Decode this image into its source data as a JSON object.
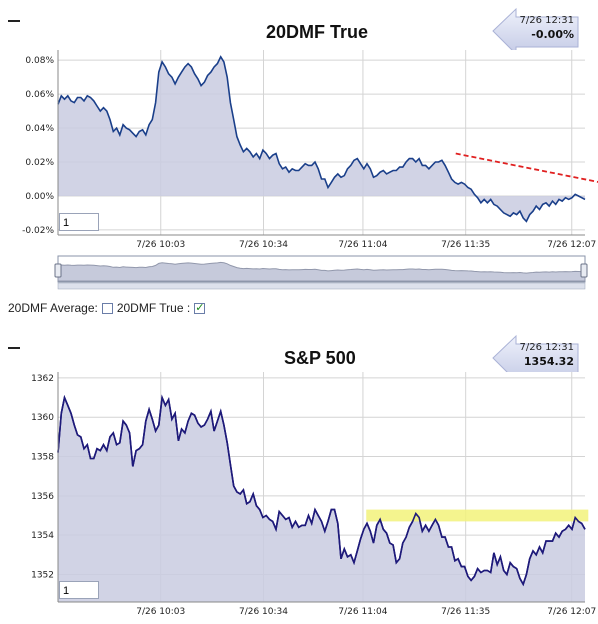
{
  "chart_data": [
    {
      "type": "area",
      "title": "20DMF True",
      "callout": {
        "time": "7/26 12:31",
        "value": "-0.00%"
      },
      "ylim": [
        -0.023,
        0.086
      ],
      "yticks": [
        "0.08%",
        "0.06%",
        "0.04%",
        "0.02%",
        "0.00%",
        "-0.02%"
      ],
      "ytick_values": [
        0.08,
        0.06,
        0.04,
        0.02,
        0.0,
        -0.02
      ],
      "x_range": [
        0,
        159
      ],
      "xticks": [
        "7/26 10:03",
        "7/26 10:34",
        "7/26 11:04",
        "7/26 11:35",
        "7/26 12:07"
      ],
      "xtick_positions": [
        31,
        62,
        92,
        123,
        155
      ],
      "zoom_value": "1",
      "trendline": {
        "from": [
          120,
          0.025
        ],
        "to": [
          179,
          0.002
        ],
        "color": "#e02020"
      },
      "series": [
        {
          "values": [
            0.054,
            0.059,
            0.057,
            0.059,
            0.056,
            0.055,
            0.058,
            0.058,
            0.056,
            0.059,
            0.058,
            0.056,
            0.053,
            0.05,
            0.052,
            0.05,
            0.045,
            0.038,
            0.04,
            0.036,
            0.042,
            0.04,
            0.039,
            0.037,
            0.035,
            0.038,
            0.039,
            0.036,
            0.042,
            0.045,
            0.055,
            0.073,
            0.079,
            0.076,
            0.072,
            0.07,
            0.066,
            0.07,
            0.073,
            0.076,
            0.078,
            0.076,
            0.072,
            0.069,
            0.065,
            0.067,
            0.071,
            0.073,
            0.076,
            0.078,
            0.082,
            0.079,
            0.07,
            0.055,
            0.045,
            0.035,
            0.03,
            0.026,
            0.028,
            0.026,
            0.023,
            0.025,
            0.022,
            0.027,
            0.025,
            0.022,
            0.024,
            0.025,
            0.019,
            0.016,
            0.017,
            0.014,
            0.016,
            0.015,
            0.015,
            0.017,
            0.019,
            0.018,
            0.018,
            0.02,
            0.016,
            0.01,
            0.01,
            0.005,
            0.008,
            0.011,
            0.013,
            0.011,
            0.012,
            0.016,
            0.018,
            0.021,
            0.022,
            0.019,
            0.016,
            0.019,
            0.016,
            0.011,
            0.012,
            0.014,
            0.015,
            0.013,
            0.014,
            0.015,
            0.015,
            0.017,
            0.017,
            0.02,
            0.022,
            0.022,
            0.02,
            0.022,
            0.018,
            0.018,
            0.016,
            0.018,
            0.02,
            0.02,
            0.021,
            0.018,
            0.014,
            0.01,
            0.008,
            0.007,
            0.008,
            0.007,
            0.005,
            0.004,
            0.001,
            -0.001,
            -0.004,
            -0.002,
            -0.004,
            -0.002,
            -0.005,
            -0.006,
            -0.008,
            -0.01,
            -0.011,
            -0.012,
            -0.01,
            -0.011,
            -0.009,
            -0.013,
            -0.015,
            -0.011,
            -0.009,
            -0.006,
            -0.008,
            -0.005,
            -0.004,
            -0.006,
            -0.003,
            -0.005,
            -0.002,
            -0.003,
            -0.001,
            -0.002,
            -0.001,
            0.001,
            0.0,
            -0.001,
            -0.002
          ]
        }
      ]
    },
    {
      "type": "area",
      "title": "S&P 500",
      "callout": {
        "time": "7/26 12:31",
        "value": "1354.32"
      },
      "ylim": [
        1350.6,
        1362.3
      ],
      "yticks": [
        "1362",
        "1360",
        "1358",
        "1356",
        "1354",
        "1352"
      ],
      "ytick_values": [
        1362,
        1360,
        1358,
        1356,
        1354,
        1352
      ],
      "x_range": [
        0,
        159
      ],
      "xticks": [
        "7/26 10:03",
        "7/26 10:34",
        "7/26 11:04",
        "7/26 11:35",
        "7/26 12:07"
      ],
      "xtick_positions": [
        31,
        62,
        92,
        123,
        155
      ],
      "zoom_value": "1",
      "highlight_band": {
        "x": [
          93,
          160
        ],
        "y": [
          1354.7,
          1355.3
        ],
        "color": "#f2f27a"
      },
      "series": [
        {
          "values": [
            1358.2,
            1360.2,
            1361,
            1360.6,
            1360.2,
            1359.6,
            1359.1,
            1359,
            1358.4,
            1358.6,
            1357.9,
            1357.9,
            1358.4,
            1358.3,
            1358.6,
            1358.3,
            1359,
            1359.2,
            1358.6,
            1358.7,
            1359.8,
            1359.6,
            1359.2,
            1357.5,
            1358.3,
            1358.4,
            1358.6,
            1359.8,
            1360.4,
            1359.9,
            1359.3,
            1359.6,
            1361,
            1360.6,
            1360.9,
            1359.9,
            1360.2,
            1358.8,
            1359.4,
            1359.2,
            1359.8,
            1360.2,
            1360.1,
            1359.7,
            1359.5,
            1359.6,
            1359.9,
            1360.3,
            1359.3,
            1359.8,
            1360.3,
            1359.6,
            1358.7,
            1357.6,
            1356.5,
            1356.2,
            1356.1,
            1356.3,
            1355.6,
            1355.7,
            1356.1,
            1355.5,
            1355.3,
            1354.9,
            1355,
            1354.8,
            1354.7,
            1354.3,
            1355.2,
            1355,
            1354.8,
            1354.9,
            1354.4,
            1354.7,
            1354.4,
            1354.5,
            1354.5,
            1355,
            1354.6,
            1355.3,
            1355,
            1354.7,
            1354.2,
            1354.7,
            1355.3,
            1355.3,
            1354.6,
            1352.8,
            1353.3,
            1352.9,
            1353,
            1352.6,
            1353.2,
            1353.8,
            1354.3,
            1354.6,
            1354.2,
            1353.6,
            1354.5,
            1354.8,
            1354.3,
            1354.1,
            1353.6,
            1353.5,
            1352.6,
            1352.8,
            1353.6,
            1353.9,
            1354.4,
            1354.7,
            1355.1,
            1354.9,
            1354.2,
            1354.5,
            1354.2,
            1354.5,
            1354.8,
            1354.5,
            1353.9,
            1353.9,
            1353.4,
            1353.4,
            1352.7,
            1352.8,
            1352.4,
            1352.4,
            1351.9,
            1351.7,
            1351.9,
            1352.3,
            1352.1,
            1352.2,
            1352.2,
            1352.1,
            1353.1,
            1352.5,
            1352.9,
            1352.2,
            1352,
            1352.6,
            1352.4,
            1352.3,
            1351.8,
            1351.5,
            1352,
            1352.8,
            1353.2,
            1353,
            1353.4,
            1353.1,
            1353.7,
            1353.7,
            1353.7,
            1354.1,
            1353.9,
            1354.2,
            1354.3,
            1354.5,
            1354.3,
            1354.9,
            1354.7,
            1354.6,
            1354.3
          ]
        }
      ]
    }
  ],
  "legend": {
    "items": [
      {
        "label": "20DMF Average:",
        "checked": false
      },
      {
        "label": "20DMF True :",
        "checked": true
      }
    ]
  }
}
